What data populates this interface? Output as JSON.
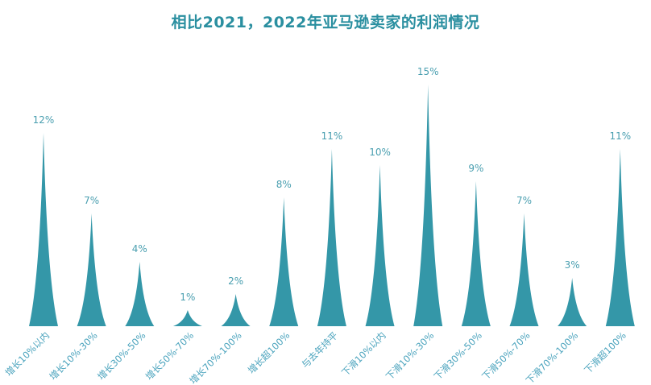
{
  "title": "相比2021，2022年亚马逊卖家的利润情况",
  "colors": {
    "bar": "#3497a8",
    "title": "#2a8fa0",
    "label": "#4aa3bd"
  },
  "chart_data": {
    "type": "bar",
    "style": "pictorial-spike",
    "title": "相比2021，2022年亚马逊卖家的利润情况",
    "xlabel": "",
    "ylabel": "",
    "ylim": [
      0,
      15
    ],
    "grid": false,
    "legend": null,
    "categories": [
      "增长10%以内",
      "增长10%-30%",
      "增长30%-50%",
      "增长50%-70%",
      "增长70%-100%",
      "增长超100%",
      "与去年持平",
      "下滑10%以内",
      "下滑10%-30%",
      "下滑30%-50%",
      "下滑50%-70%",
      "下滑70%-100%",
      "下滑超100%"
    ],
    "values": [
      12,
      7,
      4,
      1,
      2,
      8,
      11,
      10,
      15,
      9,
      7,
      3,
      11
    ],
    "value_labels": [
      "12%",
      "7%",
      "4%",
      "1%",
      "2%",
      "8%",
      "11%",
      "10%",
      "15%",
      "9%",
      "7%",
      "3%",
      "11%"
    ]
  }
}
